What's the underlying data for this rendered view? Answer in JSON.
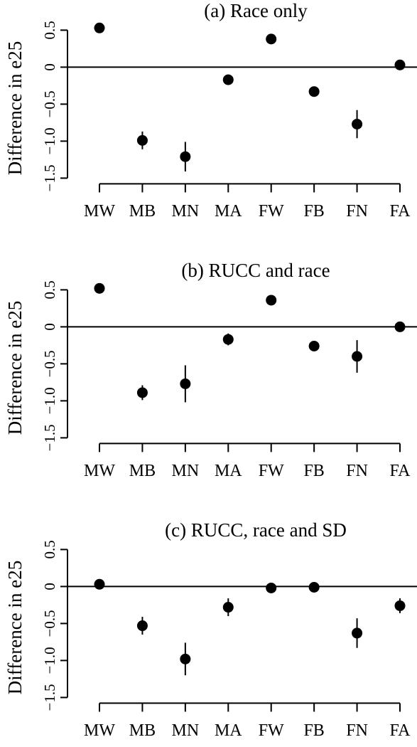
{
  "chart_data": [
    {
      "type": "errorbar",
      "title": "(a) Race only",
      "y_label": "Difference in e25",
      "categories": [
        "MW",
        "MB",
        "MN",
        "MA",
        "FW",
        "FB",
        "FN",
        "FA"
      ],
      "values": [
        0.53,
        -0.99,
        -1.21,
        -0.17,
        0.38,
        -0.33,
        -0.77,
        0.03
      ],
      "errors": [
        0.02,
        0.12,
        0.2,
        0.07,
        0.02,
        0.06,
        0.19,
        0.07
      ],
      "ylim": [
        -1.5,
        0.6
      ],
      "yticks": [
        {
          "value": -1.5,
          "label": "−1.5"
        },
        {
          "value": -1.0,
          "label": "−1.0"
        },
        {
          "value": -0.5,
          "label": "−0.5"
        },
        0,
        0.5
      ],
      "hline": 0,
      "color": "#000000"
    },
    {
      "type": "errorbar",
      "title": "(b) RUCC and race",
      "y_label": "Difference in e25",
      "categories": [
        "MW",
        "MB",
        "MN",
        "MA",
        "FW",
        "FB",
        "FN",
        "FA"
      ],
      "values": [
        0.52,
        -0.89,
        -0.77,
        -0.17,
        0.36,
        -0.26,
        -0.4,
        0
      ],
      "errors": [
        0.02,
        0.1,
        0.25,
        0.08,
        0.02,
        0.06,
        0.22,
        0.06
      ],
      "ylim": [
        -1.5,
        0.6
      ],
      "yticks": [
        {
          "value": -1.5,
          "label": "−1.5"
        },
        {
          "value": -1.0,
          "label": "−1.0"
        },
        {
          "value": -0.5,
          "label": "−0.5"
        },
        0,
        0.5
      ],
      "hline": 0,
      "color": "#000000"
    },
    {
      "type": "errorbar",
      "title": "(c) RUCC, race and SD",
      "y_label": "Difference in e25",
      "categories": [
        "MW",
        "MB",
        "MN",
        "MA",
        "FW",
        "FB",
        "FN",
        "FA"
      ],
      "values": [
        0.03,
        -0.53,
        -0.98,
        -0.28,
        -0.02,
        -0.01,
        -0.63,
        -0.26
      ],
      "errors": [
        0.02,
        0.12,
        0.22,
        0.12,
        0.02,
        0.05,
        0.2,
        0.1
      ],
      "ylim": [
        -1.5,
        0.6
      ],
      "yticks": [
        {
          "value": -1.5,
          "label": "−1.5"
        },
        {
          "value": -1.0,
          "label": "−1.0"
        },
        {
          "value": -0.5,
          "label": "−0.5"
        },
        0,
        0.5
      ],
      "hline": 0,
      "color": "#000000"
    }
  ]
}
